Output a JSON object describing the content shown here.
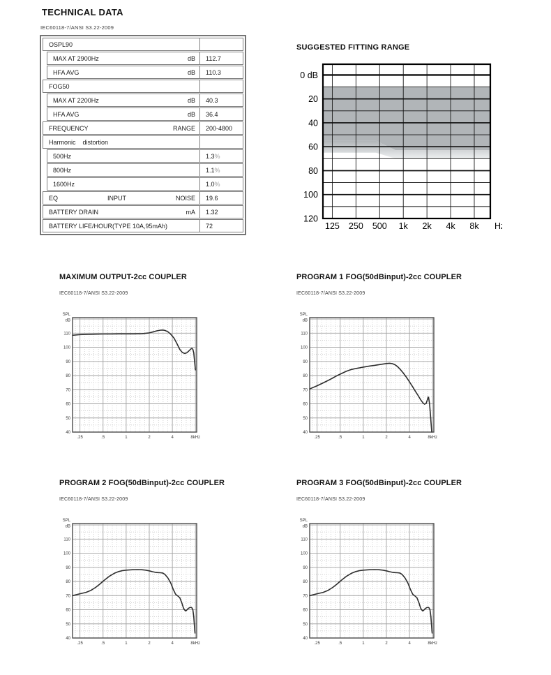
{
  "page": {
    "title": "TECHNICAL DATA",
    "standard": "IEC60118-7/ANSI S3.22-2009",
    "background": "#ffffff"
  },
  "table": {
    "rows": [
      {
        "label": "OSPL90",
        "mid": "",
        "unit": "",
        "value": "",
        "suffix": "",
        "indent": 0
      },
      {
        "label": "MAX AT 2900Hz",
        "mid": "",
        "unit": "dB",
        "value": "112.7",
        "suffix": "",
        "indent": 1
      },
      {
        "label": "HFA AVG",
        "mid": "",
        "unit": "dB",
        "value": "110.3",
        "suffix": "",
        "indent": 1
      },
      {
        "label": "FOG50",
        "mid": "",
        "unit": "",
        "value": "",
        "suffix": "",
        "indent": 0
      },
      {
        "label": "MAX AT 2200Hz",
        "mid": "",
        "unit": "dB",
        "value": "40.3",
        "suffix": "",
        "indent": 1
      },
      {
        "label": "HFA AVG",
        "mid": "",
        "unit": "dB",
        "value": "36.4",
        "suffix": "",
        "indent": 1
      },
      {
        "label": "FREQUENCY",
        "mid": "",
        "unit": "RANGE",
        "value": "200-4800",
        "suffix": "",
        "indent": 0
      },
      {
        "label": "Harmonic    distortion",
        "mid": "",
        "unit": "",
        "value": "",
        "suffix": "",
        "indent": 0
      },
      {
        "label": "500Hz",
        "mid": "",
        "unit": "",
        "value": "1.3",
        "suffix": "%",
        "indent": 1
      },
      {
        "label": "800Hz",
        "mid": "",
        "unit": "",
        "value": "1.1",
        "suffix": "%",
        "indent": 1
      },
      {
        "label": "1600Hz",
        "mid": "",
        "unit": "",
        "value": "1.0",
        "suffix": "%",
        "indent": 1
      },
      {
        "label": "EQ",
        "mid": "INPUT",
        "unit": "NOISE",
        "value": "19.6",
        "suffix": "",
        "indent": 0
      },
      {
        "label": "BATTERY DRAIN",
        "mid": "",
        "unit": "mA",
        "value": "1.32",
        "suffix": "",
        "indent": 0
      },
      {
        "label": "BATTERY LIFE/HOUR(TYPE 10A,95mAh)",
        "mid": "",
        "unit": "",
        "value": "72",
        "suffix": "",
        "indent": 0
      }
    ]
  },
  "chart_data": [
    {
      "id": "fitting-range",
      "type": "area",
      "title": "SUGGESTED FITTING RANGE",
      "x_ticks": {
        "labels": [
          "125",
          "250",
          "500",
          "1k",
          "2k",
          "4k",
          "8k"
        ],
        "hz": [
          125,
          250,
          500,
          1000,
          2000,
          4000,
          8000
        ]
      },
      "x_unit": "Hz",
      "y_ticks": {
        "labels": [
          "0 dB",
          "20",
          "40",
          "60",
          "80",
          "100",
          "120"
        ],
        "db": [
          0,
          20,
          40,
          60,
          80,
          100,
          120
        ]
      },
      "xlim_hz": [
        95,
        12800
      ],
      "ylim_db": [
        -9,
        120
      ],
      "grid": "on",
      "line_color": "#111111",
      "bands": [
        {
          "name": "dark-fitting-area",
          "color": "#b1b5b8",
          "upper": [
            [
              95,
              10
            ],
            [
              12800,
              10
            ]
          ],
          "lower": [
            [
              95,
              55
            ],
            [
              450,
              55
            ],
            [
              800,
              63
            ],
            [
              12800,
              63
            ]
          ]
        },
        {
          "name": "fade-fitting-area",
          "color_top": "#b1b5b8",
          "color_bottom": "#eef0f1",
          "upper": [
            [
              95,
              55
            ],
            [
              450,
              55
            ],
            [
              800,
              63
            ],
            [
              12800,
              63
            ]
          ],
          "lower": [
            [
              95,
              65
            ],
            [
              450,
              65
            ],
            [
              800,
              70
            ],
            [
              12800,
              70
            ]
          ]
        }
      ]
    },
    {
      "id": "maximum-output",
      "type": "line",
      "title": "MAXIMUM OUTPUT-2cc COUPLER",
      "subtitle": "IEC60118-7/ANSI S3.22-2009",
      "ylabel_lines": [
        "SPL",
        "dB"
      ],
      "x_ticks": {
        "labels": [
          ".25",
          ".5",
          "1",
          "2",
          "4",
          "8kHz"
        ],
        "khz": [
          0.25,
          0.5,
          1,
          2,
          4,
          8
        ]
      },
      "y_ticks": [
        110,
        100,
        90,
        80,
        70,
        60,
        50,
        40
      ],
      "xlim_khz": [
        0.2,
        8.3
      ],
      "ylim_db": [
        40,
        121
      ],
      "grid": "major+minor",
      "line_color": "#2d2d2d",
      "points": [
        [
          0.2,
          108.5
        ],
        [
          0.25,
          109
        ],
        [
          0.32,
          109.2
        ],
        [
          0.4,
          109.3
        ],
        [
          0.5,
          109.4
        ],
        [
          0.63,
          109.4
        ],
        [
          0.8,
          109.5
        ],
        [
          1.0,
          109.5
        ],
        [
          1.25,
          109.5
        ],
        [
          1.6,
          109.6
        ],
        [
          2.0,
          110.2
        ],
        [
          2.2,
          110.8
        ],
        [
          2.5,
          111.6
        ],
        [
          2.8,
          112.1
        ],
        [
          3.0,
          112.2
        ],
        [
          3.2,
          111.9
        ],
        [
          3.5,
          111.0
        ],
        [
          3.8,
          109.3
        ],
        [
          4.2,
          106.5
        ],
        [
          4.6,
          102.5
        ],
        [
          5.0,
          98.5
        ],
        [
          5.4,
          96.3
        ],
        [
          5.8,
          95.6
        ],
        [
          6.2,
          96.2
        ],
        [
          6.6,
          97.6
        ],
        [
          7.0,
          98.9
        ],
        [
          7.2,
          99.2
        ],
        [
          7.4,
          98.6
        ],
        [
          7.6,
          96.0
        ],
        [
          7.8,
          90.0
        ],
        [
          8.0,
          84.0
        ]
      ]
    },
    {
      "id": "program-1-fog",
      "type": "line",
      "title": "PROGRAM 1 FOG(50dBinput)-2cc COUPLER",
      "subtitle": "IEC60118-7/ANSI S3.22-2009",
      "ylabel_lines": [
        "SPL",
        "dB"
      ],
      "x_ticks": {
        "labels": [
          ".25",
          ".5",
          "1",
          "2",
          "4",
          "8kHz"
        ],
        "khz": [
          0.25,
          0.5,
          1,
          2,
          4,
          8
        ]
      },
      "y_ticks": [
        110,
        100,
        90,
        80,
        70,
        60,
        50,
        40
      ],
      "xlim_khz": [
        0.2,
        8.3
      ],
      "ylim_db": [
        40,
        121
      ],
      "grid": "major+minor",
      "line_color": "#2d2d2d",
      "points": [
        [
          0.2,
          70.5
        ],
        [
          0.25,
          72.8
        ],
        [
          0.3,
          74.8
        ],
        [
          0.35,
          76.6
        ],
        [
          0.4,
          78.3
        ],
        [
          0.45,
          79.8
        ],
        [
          0.5,
          81.0
        ],
        [
          0.6,
          83.0
        ],
        [
          0.7,
          84.3
        ],
        [
          0.8,
          85.0
        ],
        [
          0.9,
          85.5
        ],
        [
          1.0,
          86.0
        ],
        [
          1.2,
          86.7
        ],
        [
          1.4,
          87.2
        ],
        [
          1.6,
          87.7
        ],
        [
          1.8,
          88.1
        ],
        [
          2.0,
          88.5
        ],
        [
          2.2,
          88.7
        ],
        [
          2.4,
          88.4
        ],
        [
          2.6,
          87.6
        ],
        [
          2.8,
          86.3
        ],
        [
          3.0,
          84.6
        ],
        [
          3.3,
          82.0
        ],
        [
          3.6,
          79.2
        ],
        [
          4.0,
          75.5
        ],
        [
          4.4,
          72.0
        ],
        [
          4.8,
          68.7
        ],
        [
          5.2,
          65.7
        ],
        [
          5.6,
          62.8
        ],
        [
          6.0,
          60.6
        ],
        [
          6.3,
          59.7
        ],
        [
          6.6,
          60.4
        ],
        [
          6.8,
          62.5
        ],
        [
          7.0,
          64.8
        ],
        [
          7.1,
          64.5
        ],
        [
          7.3,
          60.0
        ],
        [
          7.5,
          52.0
        ],
        [
          7.7,
          44.0
        ],
        [
          7.8,
          40.0
        ]
      ]
    },
    {
      "id": "program-2-fog",
      "type": "line",
      "title": "PROGRAM 2 FOG(50dBinput)-2cc COUPLER",
      "subtitle": "IEC60118-7/ANSI S3.22-2009",
      "ylabel_lines": [
        "SPL",
        "dB"
      ],
      "x_ticks": {
        "labels": [
          ".25",
          ".5",
          "1",
          "2",
          "4",
          "8kHz"
        ],
        "khz": [
          0.25,
          0.5,
          1,
          2,
          4,
          8
        ]
      },
      "y_ticks": [
        110,
        100,
        90,
        80,
        70,
        60,
        50,
        40
      ],
      "xlim_khz": [
        0.2,
        8.3
      ],
      "ylim_db": [
        40,
        121
      ],
      "grid": "major+minor",
      "line_color": "#2d2d2d",
      "points": [
        [
          0.2,
          70.0
        ],
        [
          0.25,
          71.3
        ],
        [
          0.3,
          72.3
        ],
        [
          0.35,
          73.8
        ],
        [
          0.4,
          75.8
        ],
        [
          0.45,
          78.0
        ],
        [
          0.5,
          80.2
        ],
        [
          0.55,
          82.0
        ],
        [
          0.6,
          83.6
        ],
        [
          0.7,
          85.8
        ],
        [
          0.8,
          87.0
        ],
        [
          0.9,
          87.7
        ],
        [
          1.0,
          88.0
        ],
        [
          1.2,
          88.3
        ],
        [
          1.4,
          88.4
        ],
        [
          1.6,
          88.3
        ],
        [
          1.8,
          88.0
        ],
        [
          2.0,
          87.5
        ],
        [
          2.2,
          86.9
        ],
        [
          2.4,
          86.5
        ],
        [
          2.6,
          86.3
        ],
        [
          2.8,
          86.2
        ],
        [
          3.0,
          86.0
        ],
        [
          3.2,
          85.0
        ],
        [
          3.5,
          82.5
        ],
        [
          3.8,
          79.0
        ],
        [
          4.1,
          74.5
        ],
        [
          4.4,
          71.0
        ],
        [
          4.7,
          69.8
        ],
        [
          5.0,
          68.5
        ],
        [
          5.3,
          65.0
        ],
        [
          5.6,
          61.0
        ],
        [
          5.9,
          59.2
        ],
        [
          6.1,
          59.5
        ],
        [
          6.4,
          60.8
        ],
        [
          6.7,
          61.5
        ],
        [
          7.0,
          61.7
        ],
        [
          7.2,
          61.3
        ],
        [
          7.4,
          60.0
        ],
        [
          7.6,
          55.0
        ],
        [
          7.8,
          47.0
        ],
        [
          7.9,
          43.5
        ]
      ]
    },
    {
      "id": "program-3-fog",
      "type": "line",
      "title": "PROGRAM 3 FOG(50dBinput)-2cc COUPLER",
      "subtitle": "IEC60118-7/ANSI S3.22-2009",
      "ylabel_lines": [
        "SPL",
        "dB"
      ],
      "x_ticks": {
        "labels": [
          ".25",
          ".5",
          "1",
          "2",
          "4",
          "8kHz"
        ],
        "khz": [
          0.25,
          0.5,
          1,
          2,
          4,
          8
        ]
      },
      "y_ticks": [
        110,
        100,
        90,
        80,
        70,
        60,
        50,
        40
      ],
      "xlim_khz": [
        0.2,
        8.3
      ],
      "ylim_db": [
        40,
        121
      ],
      "grid": "major+minor",
      "line_color": "#2d2d2d",
      "points": [
        [
          0.2,
          70.0
        ],
        [
          0.25,
          71.3
        ],
        [
          0.3,
          72.3
        ],
        [
          0.35,
          73.8
        ],
        [
          0.4,
          75.8
        ],
        [
          0.45,
          78.0
        ],
        [
          0.5,
          80.2
        ],
        [
          0.55,
          82.0
        ],
        [
          0.6,
          83.6
        ],
        [
          0.7,
          85.8
        ],
        [
          0.8,
          87.0
        ],
        [
          0.9,
          87.7
        ],
        [
          1.0,
          88.0
        ],
        [
          1.2,
          88.3
        ],
        [
          1.4,
          88.4
        ],
        [
          1.6,
          88.3
        ],
        [
          1.8,
          88.0
        ],
        [
          2.0,
          87.5
        ],
        [
          2.2,
          86.9
        ],
        [
          2.4,
          86.5
        ],
        [
          2.6,
          86.3
        ],
        [
          2.8,
          86.2
        ],
        [
          3.0,
          86.0
        ],
        [
          3.2,
          85.0
        ],
        [
          3.5,
          82.5
        ],
        [
          3.8,
          79.0
        ],
        [
          4.1,
          74.5
        ],
        [
          4.4,
          71.0
        ],
        [
          4.7,
          69.8
        ],
        [
          5.0,
          68.5
        ],
        [
          5.3,
          65.0
        ],
        [
          5.6,
          61.0
        ],
        [
          5.9,
          59.2
        ],
        [
          6.1,
          59.5
        ],
        [
          6.4,
          60.8
        ],
        [
          6.7,
          61.5
        ],
        [
          7.0,
          61.7
        ],
        [
          7.2,
          61.3
        ],
        [
          7.4,
          60.0
        ],
        [
          7.6,
          55.0
        ],
        [
          7.8,
          47.0
        ],
        [
          7.9,
          43.5
        ]
      ]
    }
  ]
}
